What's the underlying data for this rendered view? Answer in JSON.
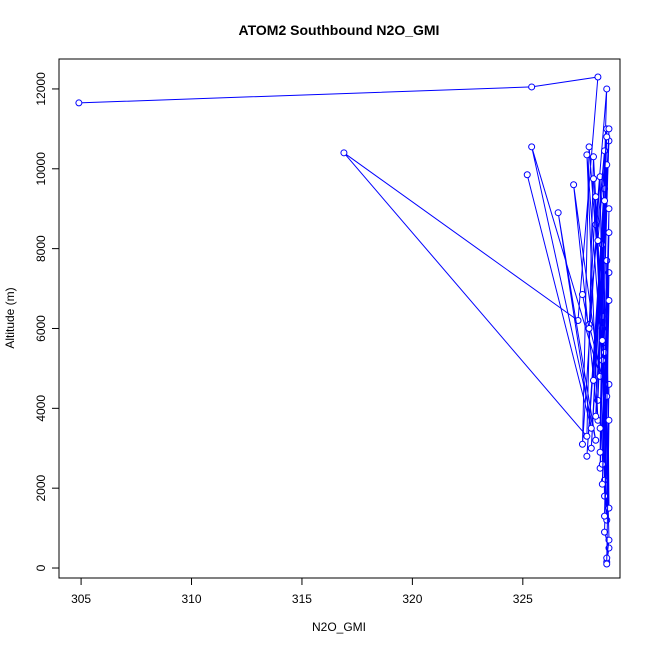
{
  "chart_data": {
    "type": "line",
    "title": "ATOM2 Southbound N2O_GMI",
    "xlabel": "N2O_GMI",
    "ylabel": "Altitude (m)",
    "xlim": [
      304,
      329.4
    ],
    "ylim": [
      -250,
      12750
    ],
    "x_ticks": [
      305,
      310,
      315,
      320,
      325
    ],
    "y_ticks": [
      0,
      2000,
      4000,
      6000,
      8000,
      10000,
      12000
    ],
    "grid": false,
    "legend": "none",
    "line_color": "#0000ff",
    "marker": "open-circle",
    "series": [
      {
        "x": [
          304.9,
          325.4,
          328.4,
          327.5,
          316.9,
          327.9,
          328.2,
          328.6,
          328.5,
          327.7,
          328.0,
          328.7,
          328.3,
          328.8,
          328.4,
          328.9,
          328.1,
          328.7,
          327.9,
          328.6,
          328.8,
          328.5,
          328.9,
          328.7,
          328.6,
          328.8,
          328.9,
          328.7,
          328.9,
          328.8
        ],
        "y": [
          11650,
          12050,
          12300,
          6200,
          10400,
          3300,
          10300,
          6000,
          9800,
          3100,
          10550,
          5500,
          8600,
          12000,
          4200,
          10700,
          3000,
          9500,
          2800,
          8100,
          11000,
          2500,
          7400,
          1800,
          6300,
          1200,
          4600,
          900,
          500,
          150
        ]
      },
      {
        "x": [
          325.2,
          328.1,
          326.6,
          328.3,
          325.4,
          328.5,
          327.3,
          328.4,
          327.9,
          328.6,
          328.2,
          328.8,
          328.0,
          328.7,
          328.5,
          328.9,
          328.3,
          328.8,
          328.6,
          328.9,
          328.7,
          328.8,
          328.9,
          328.7,
          328.9,
          328.8
        ],
        "y": [
          9850,
          3500,
          8900,
          3200,
          10550,
          4800,
          9600,
          3700,
          10350,
          5200,
          9750,
          4300,
          6100,
          10450,
          2900,
          11000,
          3800,
          10100,
          2600,
          9000,
          2200,
          7700,
          1500,
          5400,
          700,
          250
        ]
      },
      {
        "x": [
          327.7,
          328.0,
          328.3,
          328.6,
          328.4,
          328.8,
          328.2,
          328.7,
          328.5,
          328.9,
          328.6,
          328.9,
          328.7,
          328.9,
          328.8
        ],
        "y": [
          6850,
          6000,
          9300,
          5700,
          8200,
          10800,
          4700,
          9200,
          3500,
          8400,
          2100,
          6700,
          1300,
          3700,
          100
        ]
      }
    ]
  }
}
